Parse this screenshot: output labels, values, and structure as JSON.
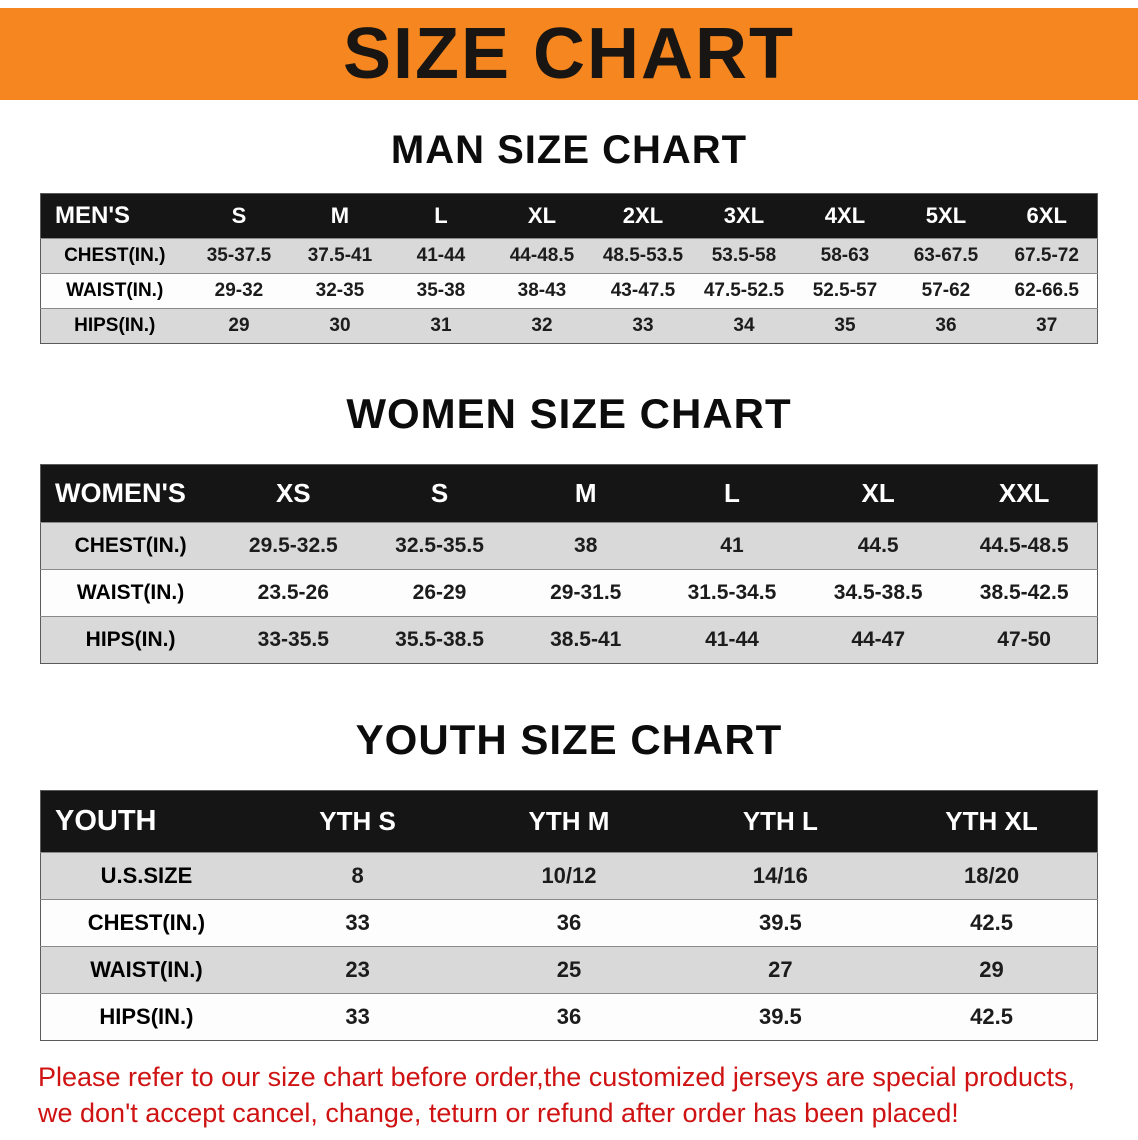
{
  "banner": {
    "title": "SIZE CHART"
  },
  "colors": {
    "banner": "#f6861f",
    "table-header": "#151515",
    "row-shade": "#d9d9d9",
    "notice": "#cf1313"
  },
  "sections": [
    {
      "id": "mens",
      "heading": "MAN SIZE CHART",
      "table": {
        "header": [
          "MEN'S",
          "S",
          "M",
          "L",
          "XL",
          "2XL",
          "3XL",
          "4XL",
          "5XL",
          "6XL"
        ],
        "rows": [
          [
            "CHEST(IN.)",
            "35-37.5",
            "37.5-41",
            "41-44",
            "44-48.5",
            "48.5-53.5",
            "53.5-58",
            "58-63",
            "63-67.5",
            "67.5-72"
          ],
          [
            "WAIST(IN.)",
            "29-32",
            "32-35",
            "35-38",
            "38-43",
            "43-47.5",
            "47.5-52.5",
            "52.5-57",
            "57-62",
            "62-66.5"
          ],
          [
            "HIPS(IN.)",
            "29",
            "30",
            "31",
            "32",
            "33",
            "34",
            "35",
            "36",
            "37"
          ]
        ]
      }
    },
    {
      "id": "womens",
      "heading": "WOMEN SIZE CHART",
      "table": {
        "header": [
          "WOMEN'S",
          "XS",
          "S",
          "M",
          "L",
          "XL",
          "XXL"
        ],
        "rows": [
          [
            "CHEST(IN.)",
            "29.5-32.5",
            "32.5-35.5",
            "38",
            "41",
            "44.5",
            "44.5-48.5"
          ],
          [
            "WAIST(IN.)",
            "23.5-26",
            "26-29",
            "29-31.5",
            "31.5-34.5",
            "34.5-38.5",
            "38.5-42.5"
          ],
          [
            "HIPS(IN.)",
            "33-35.5",
            "35.5-38.5",
            "38.5-41",
            "41-44",
            "44-47",
            "47-50"
          ]
        ]
      }
    },
    {
      "id": "youth",
      "heading": "YOUTH SIZE CHART",
      "table": {
        "header": [
          "YOUTH",
          "YTH S",
          "YTH M",
          "YTH L",
          "YTH XL"
        ],
        "rows": [
          [
            "U.S.SIZE",
            "8",
            "10/12",
            "14/16",
            "18/20"
          ],
          [
            "CHEST(IN.)",
            "33",
            "36",
            "39.5",
            "42.5"
          ],
          [
            "WAIST(IN.)",
            "23",
            "25",
            "27",
            "29"
          ],
          [
            "HIPS(IN.)",
            "33",
            "36",
            "39.5",
            "42.5"
          ]
        ]
      }
    }
  ],
  "notice": {
    "line1": "Please refer to our size chart before order,the customized jerseys are special products,",
    "line2": "we don't accept cancel, change, teturn or refund after order has been placed!"
  }
}
